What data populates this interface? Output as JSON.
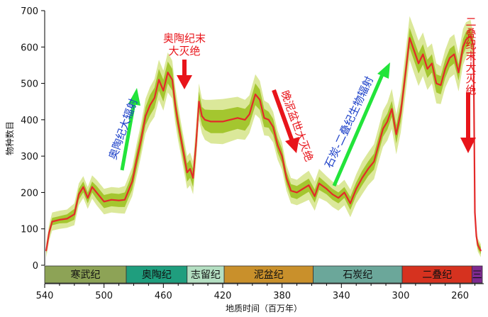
{
  "chart_data": {
    "type": "line",
    "xlabel": "地质时间（百万年）",
    "ylabel": "物种数目",
    "x_ticks": [
      540,
      500,
      460,
      420,
      380,
      340,
      300,
      260
    ],
    "y_ticks": [
      0,
      100,
      200,
      300,
      400,
      500,
      600,
      700
    ],
    "xlim": [
      540,
      245
    ],
    "ylim": [
      0,
      700
    ],
    "grid": false,
    "series": [
      {
        "x": [
          539,
          537,
          535,
          530,
          525,
          520,
          517,
          514,
          511,
          508,
          505,
          500,
          495,
          490,
          486,
          484,
          481,
          478,
          475,
          472,
          469,
          466,
          463,
          460,
          457,
          454,
          452,
          450,
          448,
          446,
          444,
          442,
          440,
          438,
          436,
          434,
          432,
          428,
          420,
          410,
          405,
          402,
          398,
          395,
          392,
          389,
          386,
          383,
          380,
          377,
          374,
          370,
          366,
          362,
          358,
          355,
          350,
          346,
          342,
          338,
          334,
          330,
          326,
          322,
          318,
          315,
          312,
          309,
          306,
          303,
          300,
          297,
          294,
          291,
          288,
          285,
          282,
          279,
          276,
          273,
          270,
          267,
          264,
          261,
          258,
          256,
          253,
          251,
          250,
          249,
          248,
          246
        ],
        "y": [
          40,
          90,
          120,
          125,
          128,
          140,
          195,
          215,
          185,
          215,
          200,
          175,
          180,
          178,
          180,
          200,
          230,
          290,
          345,
          410,
          440,
          460,
          510,
          480,
          530,
          510,
          440,
          390,
          345,
          300,
          255,
          265,
          240,
          330,
          450,
          410,
          400,
          395,
          395,
          405,
          400,
          415,
          470,
          455,
          405,
          400,
          380,
          330,
          300,
          240,
          205,
          200,
          210,
          220,
          190,
          225,
          210,
          195,
          185,
          200,
          170,
          210,
          240,
          265,
          285,
          330,
          375,
          395,
          430,
          360,
          420,
          520,
          625,
          590,
          555,
          580,
          540,
          555,
          500,
          495,
          540,
          570,
          580,
          530,
          600,
          620,
          630,
          605,
          145,
          80,
          55,
          40
        ],
        "band_inner": [
          8,
          10,
          10,
          10,
          12,
          15,
          15,
          15,
          15,
          15,
          18,
          18,
          18,
          18,
          20,
          20,
          22,
          25,
          25,
          25,
          28,
          28,
          30,
          30,
          30,
          30,
          28,
          25,
          25,
          25,
          25,
          25,
          25,
          28,
          28,
          25,
          28,
          32,
          32,
          30,
          30,
          28,
          30,
          28,
          25,
          22,
          22,
          20,
          20,
          18,
          18,
          18,
          18,
          18,
          18,
          18,
          15,
          15,
          15,
          15,
          18,
          18,
          20,
          20,
          22,
          22,
          22,
          22,
          22,
          25,
          25,
          25,
          28,
          28,
          28,
          28,
          25,
          25,
          25,
          25,
          25,
          25,
          25,
          22,
          22,
          22,
          22,
          15,
          12,
          10,
          10,
          10
        ],
        "band_outer": [
          20,
          22,
          25,
          25,
          25,
          30,
          30,
          30,
          30,
          32,
          35,
          35,
          35,
          35,
          38,
          38,
          40,
          45,
          45,
          48,
          50,
          52,
          55,
          55,
          55,
          52,
          50,
          48,
          45,
          45,
          45,
          45,
          45,
          50,
          50,
          48,
          55,
          60,
          62,
          58,
          55,
          52,
          55,
          52,
          48,
          45,
          42,
          40,
          38,
          35,
          35,
          35,
          38,
          40,
          40,
          40,
          35,
          35,
          35,
          35,
          38,
          40,
          45,
          45,
          48,
          48,
          50,
          52,
          55,
          55,
          55,
          58,
          60,
          62,
          62,
          60,
          58,
          55,
          55,
          52,
          52,
          55,
          55,
          52,
          50,
          48,
          45,
          30,
          25,
          20,
          18,
          18
        ]
      }
    ],
    "periods": [
      {
        "name": "寒武纪",
        "start": 541,
        "end": 485,
        "color": "#8da356"
      },
      {
        "name": "奥陶纪",
        "start": 485,
        "end": 444,
        "color": "#1f9e7e"
      },
      {
        "name": "志留纪",
        "start": 444,
        "end": 419,
        "color": "#b4dfc2"
      },
      {
        "name": "泥盆纪",
        "start": 419,
        "end": 359,
        "color": "#c9902b"
      },
      {
        "name": "石炭纪",
        "start": 359,
        "end": 299,
        "color": "#6ba79a"
      },
      {
        "name": "二叠纪",
        "start": 299,
        "end": 252,
        "color": "#d6321f"
      },
      {
        "name": "三",
        "start": 252,
        "end": 245,
        "color": "#7e2a8f"
      }
    ],
    "annotations": {
      "ordovician_radiation": "奥陶纪大辐射",
      "ordovician_extinction_line1": "奥陶纪末",
      "ordovician_extinction_line2": "大灭绝",
      "late_devonian_extinction": "晚泥盆世大灭绝",
      "carboniferous_permian_radiation": "石炭-二叠纪生物辐射",
      "permian_extinction": "二叠纪末大灭绝"
    },
    "colors": {
      "line": "#e32a2a",
      "band_inner": "#a4c62f",
      "band_outer": "#dbe89a",
      "extinction_arrow": "#e8141a",
      "radiation_arrow": "#22e43a"
    }
  }
}
